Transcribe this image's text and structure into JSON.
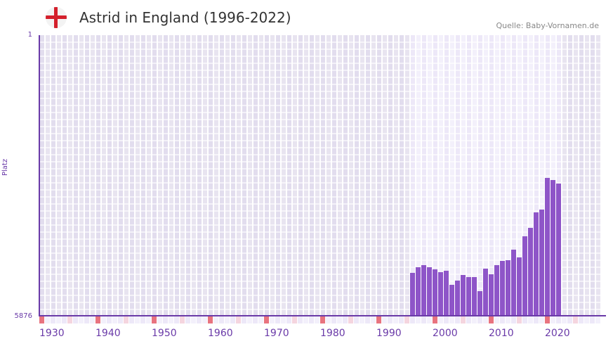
{
  "header": {
    "title": "Astrid in England (1996-2022)",
    "source": "Quelle: Baby-Vornamen.de",
    "flag_icon": "england-flag-icon"
  },
  "colors": {
    "bar": "#8e55c8",
    "axis": "#6a3aa8",
    "decade_marker": "#e8737f",
    "half_decade_marker": "#f5d5df"
  },
  "chart_data": {
    "type": "bar",
    "title": "Astrid in England (1996-2022)",
    "ylabel": "Platz",
    "xlabel": "",
    "y_scale": "log-inverted",
    "ylim": [
      5876,
      1
    ],
    "y_tick_labels": [
      "1",
      "5876"
    ],
    "xlim": [
      1930,
      2030
    ],
    "x_tick_labels": [
      "1930",
      "1940",
      "1950",
      "1960",
      "1970",
      "1980",
      "1990",
      "2000",
      "2010",
      "2020"
    ],
    "highlight_range": [
      1996,
      2022
    ],
    "grid": true,
    "x": [
      1996,
      1997,
      1998,
      1999,
      2000,
      2001,
      2002,
      2003,
      2004,
      2005,
      2006,
      2007,
      2008,
      2009,
      2010,
      2011,
      2012,
      2013,
      2014,
      2015,
      2016,
      2017,
      2018,
      2019,
      2020,
      2021,
      2022
    ],
    "values": [
      1600,
      1345,
      1260,
      1345,
      1433,
      1564,
      1498,
      2313,
      2031,
      1707,
      1822,
      1822,
      2811,
      1403,
      1670,
      1260,
      1106,
      1082,
      781,
      992,
      517,
      399,
      247,
      227,
      85,
      91,
      102
    ]
  }
}
